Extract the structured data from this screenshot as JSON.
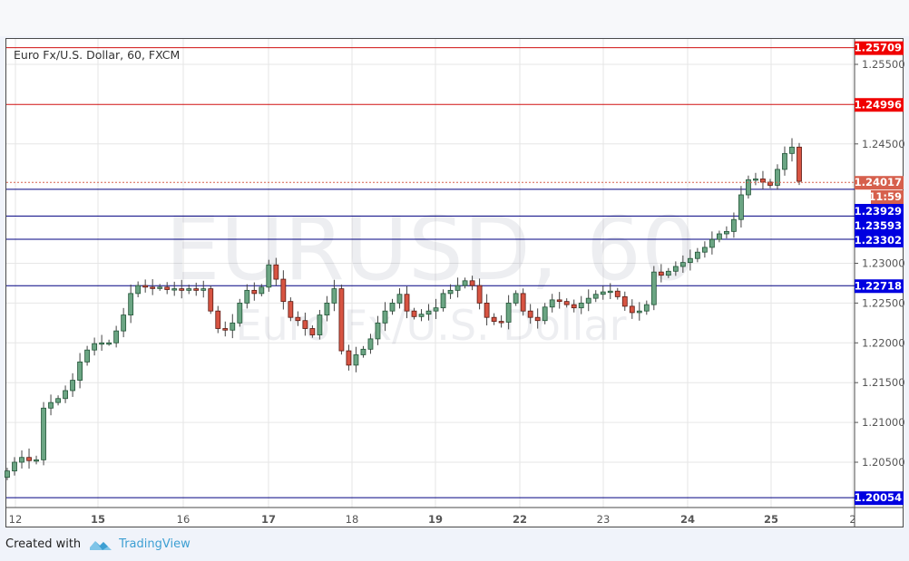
{
  "chart_data": {
    "type": "candlestick",
    "title": "Euro Fx/U.S. Dollar, 60, FXCM",
    "watermark": {
      "symbol": "EURUSD, 60",
      "description": "Euro Fx/U.S. Dollar"
    },
    "ylim": [
      1.1992,
      1.2589
    ],
    "y_ticks": [
      "1.25500",
      "1.24500",
      "1.23000",
      "1.22500",
      "1.22000",
      "1.21500",
      "1.21000",
      "1.20500"
    ],
    "y_tick_values": [
      1.255,
      1.245,
      1.23,
      1.225,
      1.22,
      1.215,
      1.21,
      1.205
    ],
    "x_ticks": [
      "12",
      "15",
      "16",
      "17",
      "18",
      "19",
      "22",
      "23",
      "24",
      "25",
      "2"
    ],
    "grid": true,
    "closes": [
      1.2039,
      1.205,
      1.2056,
      1.2052,
      1.2053,
      1.2118,
      1.2125,
      1.213,
      1.214,
      1.2153,
      1.2176,
      1.2191,
      1.2199,
      1.22,
      1.22,
      1.2215,
      1.2235,
      1.2262,
      1.2272,
      1.227,
      1.2269,
      1.227,
      1.2267,
      1.2268,
      1.2266,
      1.2268,
      1.2266,
      1.2268,
      1.224,
      1.2218,
      1.2216,
      1.2225,
      1.225,
      1.2266,
      1.2262,
      1.227,
      1.2298,
      1.228,
      1.2252,
      1.2232,
      1.2228,
      1.2218,
      1.221,
      1.2235,
      1.225,
      1.2268,
      1.219,
      1.2172,
      1.2185,
      1.2192,
      1.2205,
      1.2225,
      1.224,
      1.225,
      1.2261,
      1.224,
      1.2233,
      1.2236,
      1.224,
      1.2244,
      1.2262,
      1.2266,
      1.2272,
      1.2278,
      1.2272,
      1.225,
      1.2232,
      1.2227,
      1.2226,
      1.225,
      1.2262,
      1.224,
      1.2232,
      1.2228,
      1.2245,
      1.2254,
      1.2252,
      1.2248,
      1.2244,
      1.225,
      1.2256,
      1.2261,
      1.2264,
      1.2265,
      1.2258,
      1.2246,
      1.2238,
      1.224,
      1.2248,
      1.2289,
      1.2285,
      1.229,
      1.2296,
      1.2301,
      1.2306,
      1.2314,
      1.232,
      1.233,
      1.2337,
      1.234,
      1.2355,
      1.2386,
      1.2405,
      1.2406,
      1.2402,
      1.2398,
      1.2418,
      1.2438,
      1.2446,
      1.2403
    ],
    "horizontal_lines": [
      {
        "value": 1.25709,
        "label": "1.25709",
        "color": "#e00000"
      },
      {
        "value": 1.24996,
        "label": "1.24996",
        "color": "#e00000"
      },
      {
        "value": 1.23929,
        "label": "1.23929",
        "color": "#0000d0"
      },
      {
        "value": 1.23593,
        "label": "1.23593",
        "color": "#0000d0"
      },
      {
        "value": 1.23302,
        "label": "1.23302",
        "color": "#0000d0"
      },
      {
        "value": 1.22718,
        "label": "1.22718",
        "color": "#0000d0"
      },
      {
        "value": 1.20054,
        "label": "1.20054",
        "color": "#0000d0"
      }
    ],
    "current_price": {
      "value": 1.24017,
      "label": "1.24017",
      "countdown": "11:59",
      "color": "#d6604d"
    },
    "colors": {
      "up": "#6ba583",
      "down": "#d75442",
      "grid": "#e6e6e6"
    }
  },
  "footer": {
    "created_with": "Created with",
    "brand": "TradingView"
  }
}
